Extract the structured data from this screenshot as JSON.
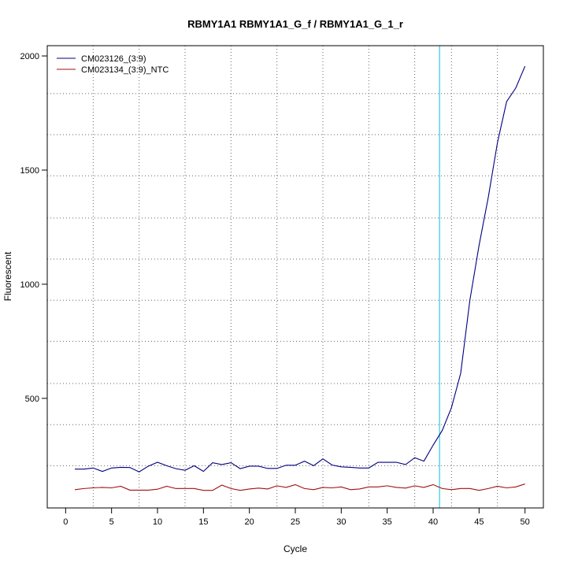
{
  "chart_data": {
    "type": "line",
    "title": "RBMY1A1  RBMY1A1_G_f / RBMY1A1_G_1_r",
    "xlabel": "Cycle",
    "ylabel": "Fluorescent",
    "xlim": [
      -2,
      52
    ],
    "ylim": [
      20,
      2045
    ],
    "x_ticks": [
      0,
      5,
      10,
      15,
      20,
      25,
      30,
      35,
      40,
      45,
      50
    ],
    "y_ticks": [
      500,
      1000,
      1500,
      2000
    ],
    "x_grid": [
      3,
      8,
      13,
      18,
      23,
      28,
      33,
      38,
      42,
      47
    ],
    "y_grid": [
      205,
      385,
      565,
      750,
      930,
      1110,
      1290,
      1475,
      1655,
      1835
    ],
    "grid": true,
    "legend_position": "top-left",
    "threshold_x": 40.7,
    "threshold_color": "#40d0e8",
    "x": [
      1,
      2,
      3,
      4,
      5,
      6,
      7,
      8,
      9,
      10,
      11,
      12,
      13,
      14,
      15,
      16,
      17,
      18,
      19,
      20,
      21,
      22,
      23,
      24,
      25,
      26,
      27,
      28,
      29,
      30,
      31,
      32,
      33,
      34,
      35,
      36,
      37,
      38,
      39,
      40,
      41,
      42,
      43,
      44,
      45,
      46,
      47,
      48,
      49,
      50
    ],
    "series": [
      {
        "name": "CM023126_(3:9)",
        "color": "#00007f",
        "values": [
          190,
          190,
          195,
          180,
          195,
          198,
          197,
          178,
          203,
          220,
          205,
          192,
          185,
          205,
          180,
          218,
          210,
          218,
          192,
          203,
          203,
          193,
          193,
          207,
          207,
          225,
          205,
          235,
          208,
          200,
          198,
          195,
          195,
          220,
          220,
          220,
          210,
          240,
          225,
          295,
          360,
          460,
          610,
          930,
          1170,
          1380,
          1620,
          1800,
          1860,
          1955
        ]
      },
      {
        "name": "CM023134_(3:9)_NTC",
        "color": "#a01010",
        "values": [
          100,
          105,
          108,
          110,
          108,
          115,
          98,
          98,
          98,
          102,
          115,
          105,
          105,
          105,
          97,
          97,
          120,
          105,
          97,
          103,
          107,
          103,
          117,
          110,
          122,
          105,
          100,
          110,
          108,
          112,
          100,
          103,
          112,
          112,
          117,
          110,
          107,
          117,
          110,
          122,
          105,
          100,
          105,
          105,
          97,
          105,
          115,
          108,
          112,
          125
        ]
      }
    ]
  }
}
